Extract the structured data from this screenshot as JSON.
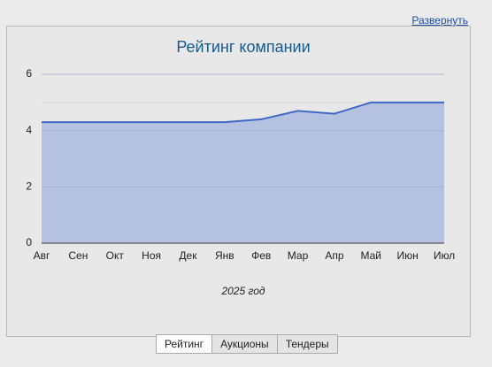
{
  "header": {
    "link": "Развернуть"
  },
  "chart_data": {
    "type": "area",
    "title": "Рейтинг компании",
    "x_label": "2025 год",
    "categories": [
      "Авг",
      "Сен",
      "Окт",
      "Ноя",
      "Дек",
      "Янв",
      "Фев",
      "Мар",
      "Апр",
      "Май",
      "Июн",
      "Июл"
    ],
    "values": [
      4.3,
      4.3,
      4.3,
      4.3,
      4.3,
      4.3,
      4.4,
      4.7,
      4.6,
      5,
      5,
      5
    ],
    "color": "#3f68c6",
    "fill": "#aebde0",
    "ylim": [
      0,
      6
    ],
    "yticks": [
      0,
      2,
      4,
      6
    ],
    "minor_yticks": [
      1,
      3,
      5
    ],
    "grid": true
  },
  "tabs": [
    {
      "label": "Рейтинг",
      "active": true
    },
    {
      "label": "Аукционы",
      "active": false
    },
    {
      "label": "Тендеры",
      "active": false
    }
  ]
}
